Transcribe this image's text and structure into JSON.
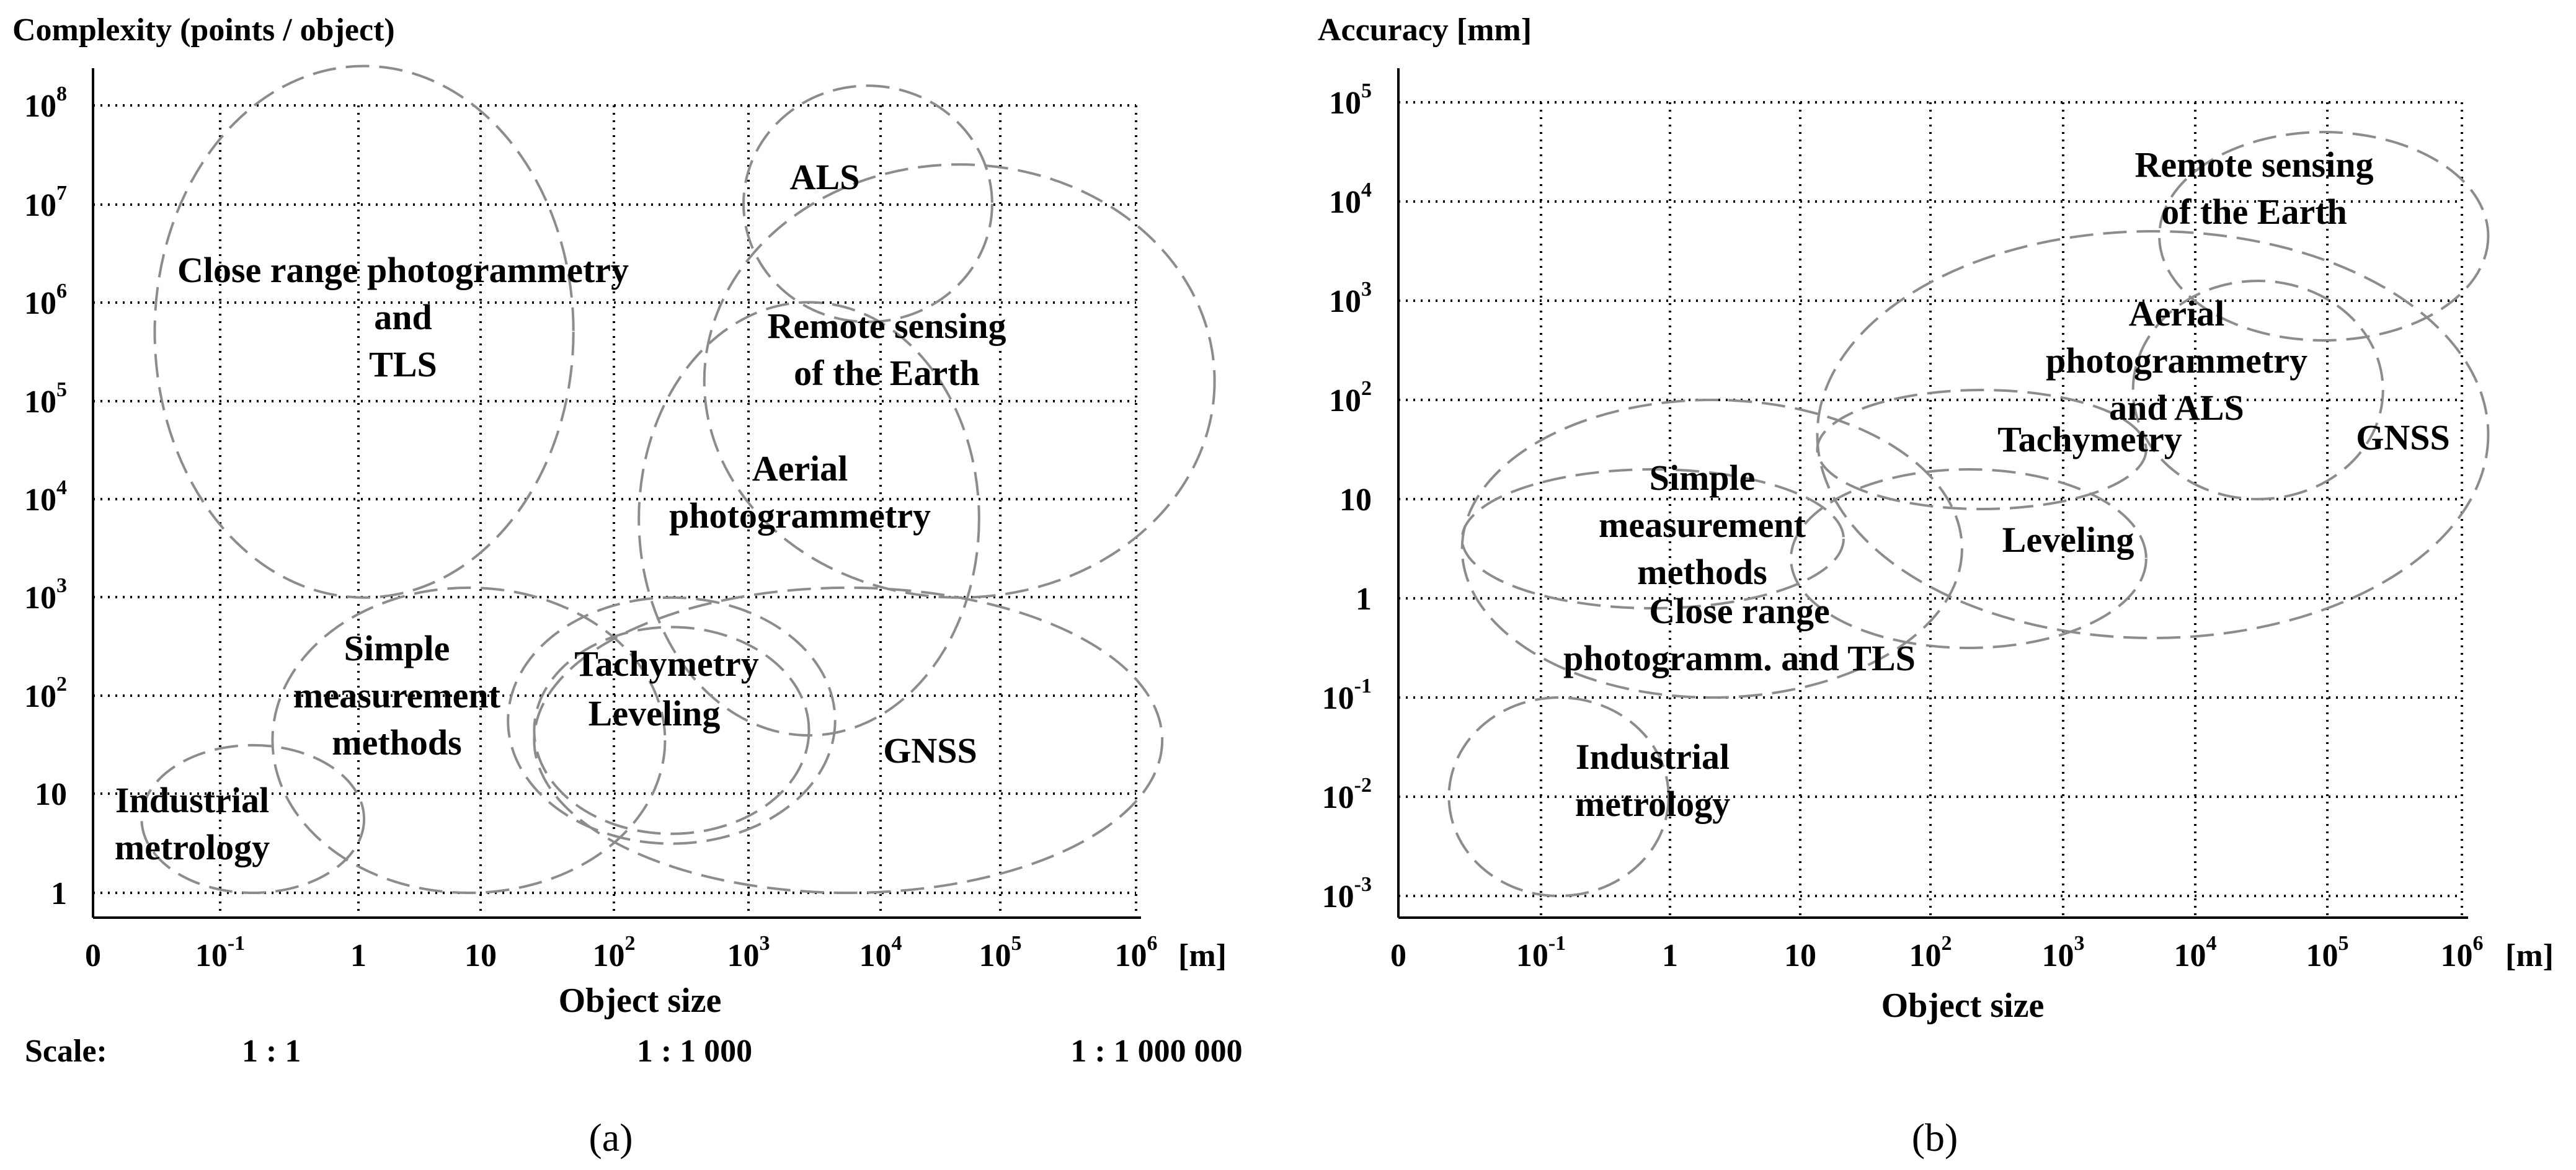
{
  "chart_data": [
    {
      "type": "scatter",
      "panel_label": "(a)",
      "ylabel": "Complexity (points / object)",
      "xlabel": "Object size",
      "x_unit": "[m]",
      "x_ticks": [
        {
          "base": "0",
          "exp": ""
        },
        {
          "base": "10",
          "exp": "-1"
        },
        {
          "base": "1",
          "exp": ""
        },
        {
          "base": "10",
          "exp": ""
        },
        {
          "base": "10",
          "exp": "2"
        },
        {
          "base": "10",
          "exp": "3"
        },
        {
          "base": "10",
          "exp": "4"
        },
        {
          "base": "10",
          "exp": "5"
        },
        {
          "base": "10",
          "exp": "6"
        }
      ],
      "y_ticks": [
        {
          "base": "1",
          "exp": ""
        },
        {
          "base": "10",
          "exp": ""
        },
        {
          "base": "10",
          "exp": "2"
        },
        {
          "base": "10",
          "exp": "3"
        },
        {
          "base": "10",
          "exp": "4"
        },
        {
          "base": "10",
          "exp": "5"
        },
        {
          "base": "10",
          "exp": "6"
        },
        {
          "base": "10",
          "exp": "7"
        },
        {
          "base": "10",
          "exp": "8"
        }
      ],
      "x_log_range": [
        -2,
        6
      ],
      "y_log_range": [
        0,
        8
      ],
      "grid": true,
      "scale_label": "Scale:",
      "scale_ratios": [
        "1 : 1",
        "1 : 1 000",
        "1 : 1 000 000"
      ],
      "regions": [
        {
          "label": [
            "Close range photogrammetry",
            "and",
            "TLS"
          ],
          "x_log": [
            -1.5,
            1.7
          ],
          "y_log": [
            3.0,
            8.4
          ]
        },
        {
          "label": [
            "ALS"
          ],
          "x_log": [
            3.0,
            4.9
          ],
          "y_log": [
            5.8,
            8.2
          ]
        },
        {
          "label": [
            "Remote sensing",
            "of the Earth"
          ],
          "x_log": [
            2.7,
            6.6
          ],
          "y_log": [
            3.0,
            7.4
          ]
        },
        {
          "label": [
            "Aerial",
            "photogrammetry"
          ],
          "x_log": [
            2.2,
            4.8
          ],
          "y_log": [
            1.6,
            6.0
          ]
        },
        {
          "label": [
            "Simple",
            "measurement",
            "methods"
          ],
          "x_log": [
            -0.6,
            2.4
          ],
          "y_log": [
            0.0,
            3.1
          ]
        },
        {
          "label": [
            "Industrial",
            "metrology"
          ],
          "x_log": [
            -1.6,
            0.1
          ],
          "y_log": [
            0.0,
            1.5
          ]
        },
        {
          "label": [
            "Tachymetry"
          ],
          "x_log": [
            1.2,
            3.7
          ],
          "y_log": [
            0.5,
            3.0
          ]
        },
        {
          "label": [
            "Leveling"
          ],
          "x_log": [
            1.4,
            3.5
          ],
          "y_log": [
            0.6,
            2.7
          ]
        },
        {
          "label": [
            "GNSS"
          ],
          "x_log": [
            1.4,
            6.2
          ],
          "y_log": [
            0.0,
            3.1
          ]
        }
      ]
    },
    {
      "type": "scatter",
      "panel_label": "(b)",
      "ylabel": "Accuracy [mm]",
      "xlabel": "Object size",
      "x_unit": "[m]",
      "x_ticks": [
        {
          "base": "0",
          "exp": ""
        },
        {
          "base": "10",
          "exp": "-1"
        },
        {
          "base": "1",
          "exp": ""
        },
        {
          "base": "10",
          "exp": ""
        },
        {
          "base": "10",
          "exp": "2"
        },
        {
          "base": "10",
          "exp": "3"
        },
        {
          "base": "10",
          "exp": "4"
        },
        {
          "base": "10",
          "exp": "5"
        },
        {
          "base": "10",
          "exp": "6"
        }
      ],
      "y_ticks": [
        {
          "base": "10",
          "exp": "-3"
        },
        {
          "base": "10",
          "exp": "-2"
        },
        {
          "base": "10",
          "exp": "-1"
        },
        {
          "base": "1",
          "exp": ""
        },
        {
          "base": "10",
          "exp": ""
        },
        {
          "base": "10",
          "exp": "2"
        },
        {
          "base": "10",
          "exp": "3"
        },
        {
          "base": "10",
          "exp": "4"
        },
        {
          "base": "10",
          "exp": "5"
        }
      ],
      "x_log_range": [
        -2,
        6
      ],
      "y_log_range": [
        -3,
        5
      ],
      "grid": true,
      "regions": [
        {
          "label": [
            "Remote sensing",
            "of the Earth"
          ],
          "x_log": [
            3.7,
            6.2
          ],
          "y_log": [
            2.6,
            4.7
          ]
        },
        {
          "label": [
            "Aerial",
            "photogrammetry",
            "and ALS"
          ],
          "x_log": [
            3.5,
            5.4
          ],
          "y_log": [
            1.0,
            3.2
          ]
        },
        {
          "label": [
            "GNSS"
          ],
          "x_log": [
            1.1,
            6.2
          ],
          "y_log": [
            -0.4,
            3.7
          ]
        },
        {
          "label": [
            "Tachymetry"
          ],
          "x_log": [
            1.1,
            3.6
          ],
          "y_log": [
            0.9,
            2.1
          ]
        },
        {
          "label": [
            "Leveling"
          ],
          "x_log": [
            0.9,
            3.6
          ],
          "y_log": [
            -0.5,
            1.3
          ]
        },
        {
          "label": [
            "Simple",
            "measurement",
            "methods"
          ],
          "x_log": [
            -1.6,
            1.3
          ],
          "y_log": [
            -0.1,
            1.3
          ]
        },
        {
          "label": [
            "Close range",
            "photogramm. and TLS"
          ],
          "x_log": [
            -1.6,
            2.2
          ],
          "y_log": [
            -1.0,
            2.0
          ]
        },
        {
          "label": [
            "Industrial",
            "metrology"
          ],
          "x_log": [
            -1.7,
            -0.03
          ],
          "y_log": [
            -3.0,
            -1.0
          ]
        }
      ]
    }
  ]
}
